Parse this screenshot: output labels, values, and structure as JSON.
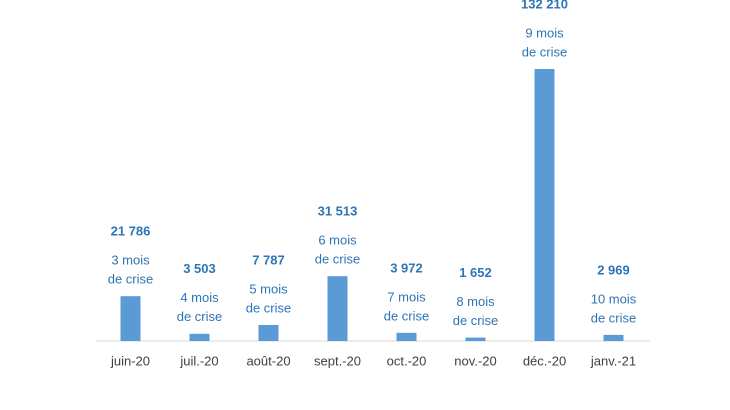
{
  "chart_data": {
    "type": "bar",
    "categories": [
      "juin-20",
      "juil.-20",
      "août-20",
      "sept.-20",
      "oct.-20",
      "nov.-20",
      "déc.-20",
      "janv.-21"
    ],
    "values": [
      21786,
      3503,
      7787,
      31513,
      3972,
      1652,
      132210,
      2969
    ],
    "value_labels": [
      "21 786",
      "3 503",
      "7 787",
      "31 513",
      "3 972",
      "1 652",
      "132 210",
      "2 969"
    ],
    "annotations": [
      [
        "3 mois",
        "de crise"
      ],
      [
        "4 mois",
        "de crise"
      ],
      [
        "5 mois",
        "de crise"
      ],
      [
        "6 mois",
        "de crise"
      ],
      [
        "7 mois",
        "de crise"
      ],
      [
        "8 mois",
        "de crise"
      ],
      [
        "9 mois",
        "de crise"
      ],
      [
        "10 mois",
        "de crise"
      ]
    ],
    "color": "#5B9BD5"
  }
}
